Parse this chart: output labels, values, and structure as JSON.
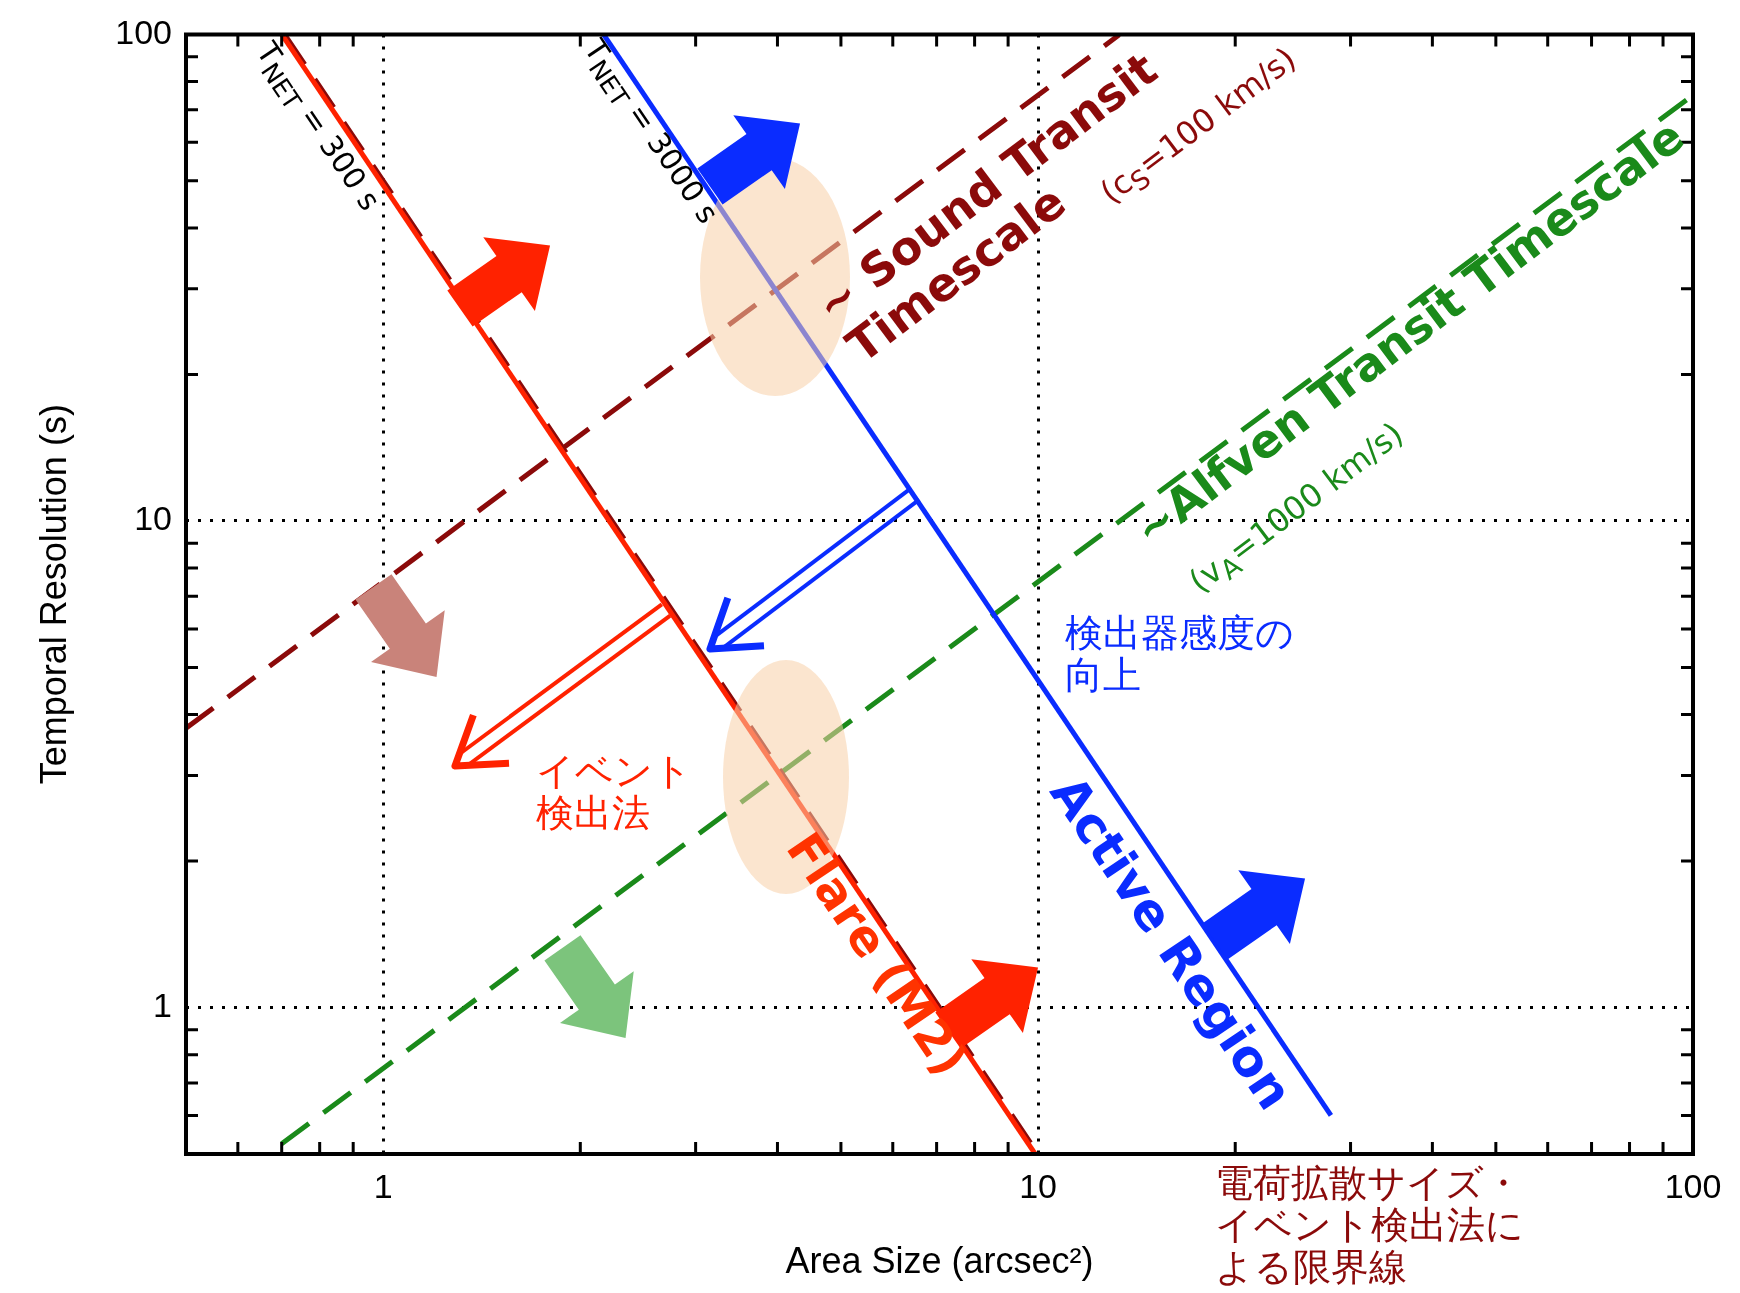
{
  "chart_data": {
    "type": "line",
    "xlabel": "Area Size (arcsec²)",
    "ylabel": "Temporal Resolution (s)",
    "xlim": [
      0.5,
      100
    ],
    "ylim": [
      0.5,
      100
    ],
    "xticks": [
      {
        "value": 0.5,
        "label": null
      },
      {
        "value": 0.6,
        "label": null
      },
      {
        "value": 0.7,
        "label": null
      },
      {
        "value": 0.8,
        "label": null
      },
      {
        "value": 0.9,
        "label": null
      },
      1,
      {
        "value": 2,
        "label": null
      },
      {
        "value": 3,
        "label": null
      },
      {
        "value": 4,
        "label": null
      },
      {
        "value": 5,
        "label": null
      },
      {
        "value": 6,
        "label": null
      },
      {
        "value": 7,
        "label": null
      },
      {
        "value": 8,
        "label": null
      },
      {
        "value": 9,
        "label": null
      },
      10,
      {
        "value": 20,
        "label": null
      },
      {
        "value": 30,
        "label": null
      },
      {
        "value": 40,
        "label": null
      },
      {
        "value": 50,
        "label": null
      },
      {
        "value": 60,
        "label": null
      },
      {
        "value": 70,
        "label": null
      },
      {
        "value": 80,
        "label": null
      },
      {
        "value": 90,
        "label": null
      },
      100
    ],
    "yticks": [
      {
        "value": 0.5,
        "label": null
      },
      {
        "value": 0.6,
        "label": null
      },
      {
        "value": 0.7,
        "label": null
      },
      {
        "value": 0.8,
        "label": null
      },
      {
        "value": 0.9,
        "label": null
      },
      1,
      {
        "value": 2,
        "label": null
      },
      {
        "value": 3,
        "label": null
      },
      {
        "value": 4,
        "label": null
      },
      {
        "value": 5,
        "label": null
      },
      {
        "value": 6,
        "label": null
      },
      {
        "value": 7,
        "label": null
      },
      {
        "value": 8,
        "label": null
      },
      {
        "value": 9,
        "label": null
      },
      10,
      {
        "value": 20,
        "label": null
      },
      {
        "value": 30,
        "label": null
      },
      {
        "value": 40,
        "label": null
      },
      {
        "value": 50,
        "label": null
      },
      {
        "value": 60,
        "label": null
      },
      {
        "value": 70,
        "label": null
      },
      {
        "value": 80,
        "label": null
      },
      {
        "value": 90,
        "label": null
      },
      100
    ],
    "log": "xy",
    "grid": true,
    "legend": false,
    "marker": "none",
    "series": [
      {
        "type": "line",
        "color": "#ff2200",
        "line_style": "solid",
        "x": [
          0.7,
          9.9
        ],
        "values": [
          100,
          0.5
        ]
      },
      {
        "type": "line",
        "color": "#8b0a0a",
        "line_style": "dashed",
        "x": [
          0.71,
          10
        ],
        "values": [
          99.2,
          0.5
        ]
      },
      {
        "type": "line",
        "color": "#0a2cff",
        "line_style": "solid",
        "x": [
          2.17,
          28
        ],
        "values": [
          100,
          0.6
        ]
      },
      {
        "type": "line",
        "color": "#8b0a0a",
        "line_style": "dashed",
        "x": [
          0.5,
          13.3
        ],
        "values": [
          3.75,
          99.8
        ]
      },
      {
        "type": "line",
        "color": "#1a8a1a",
        "line_style": "dashed",
        "x": [
          0.7,
          100
        ],
        "values": [
          0.525,
          75
        ]
      }
    ],
    "annotations": [
      "T$_{NET}$ = 300 s",
      "T$_{NET}$ = 3000 s",
      "~ Sound Transit Timescale",
      "(c$_{S}$=100 km/s)",
      "~Alfven Transit Timescale",
      "(v$_{A}$=1000 km/s)",
      "検出器感度の向上",
      "イベント検出法",
      "Flare (M2)",
      "Active Region",
      "電荷拡散サイズ・イベント検出法による限界線"
    ]
  }
}
